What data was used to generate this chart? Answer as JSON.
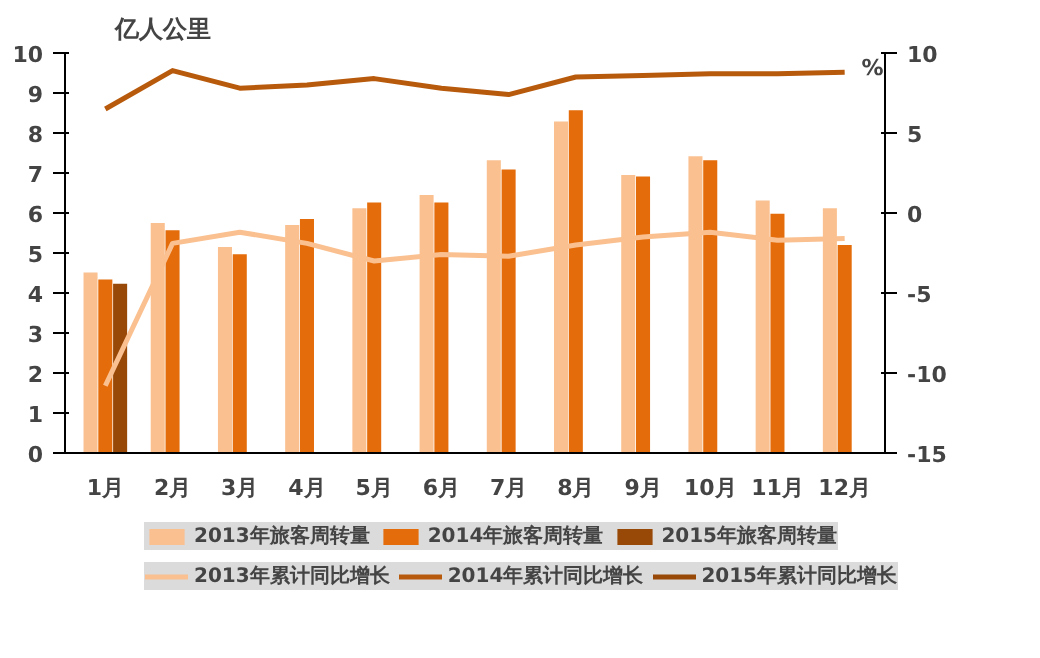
{
  "chart_data": {
    "type": "bar",
    "ylabel": "亿人公里",
    "y2label": "%",
    "categories": [
      "1月",
      "2月",
      "3月",
      "4月",
      "5月",
      "6月",
      "7月",
      "8月",
      "9月",
      "10月",
      "11月",
      "12月"
    ],
    "series": [
      {
        "name": "2013年旅客周转量",
        "color": "#fac090",
        "values": [
          4.51,
          5.75,
          5.15,
          5.7,
          6.12,
          6.45,
          7.32,
          8.29,
          6.95,
          7.42,
          6.31,
          6.12
        ]
      },
      {
        "name": "2014年旅客周转量",
        "color": "#e46c0a",
        "values": [
          4.34,
          5.57,
          4.97,
          5.85,
          6.26,
          6.26,
          7.09,
          8.57,
          6.91,
          7.32,
          5.98,
          5.2
        ]
      },
      {
        "name": "2015年旅客周转量",
        "color": "#984807",
        "values": [
          4.23,
          null,
          null,
          null,
          null,
          null,
          null,
          null,
          null,
          null,
          null,
          null
        ]
      },
      {
        "name": "2013年累计同比增长",
        "type": "line",
        "axis": "y2",
        "color": "#fac090",
        "values": [
          -10.8,
          -1.9,
          -1.2,
          -1.9,
          -3.0,
          -2.6,
          -2.7,
          -2.0,
          -1.5,
          -1.2,
          -1.7,
          -1.6
        ]
      },
      {
        "name": "2014年累计同比增长",
        "type": "line",
        "axis": "y2",
        "color": "#b85a0c",
        "values": [
          6.5,
          8.9,
          7.8,
          8.0,
          8.4,
          7.8,
          7.4,
          8.5,
          8.6,
          8.7,
          8.7,
          8.8
        ]
      },
      {
        "name": "2015年累计同比增长",
        "type": "line",
        "axis": "y2",
        "color": "#984807",
        "values": [
          null,
          null,
          null,
          null,
          null,
          null,
          null,
          null,
          null,
          null,
          null,
          null
        ]
      }
    ],
    "ylim": [
      0,
      10
    ],
    "yticks": [
      0,
      1,
      2,
      3,
      4,
      5,
      6,
      7,
      8,
      9,
      10
    ],
    "y2lim": [
      -15,
      10
    ],
    "y2ticks": [
      -15,
      -10,
      -5,
      0,
      5,
      10
    ],
    "grid": false,
    "legend": "bottom"
  }
}
